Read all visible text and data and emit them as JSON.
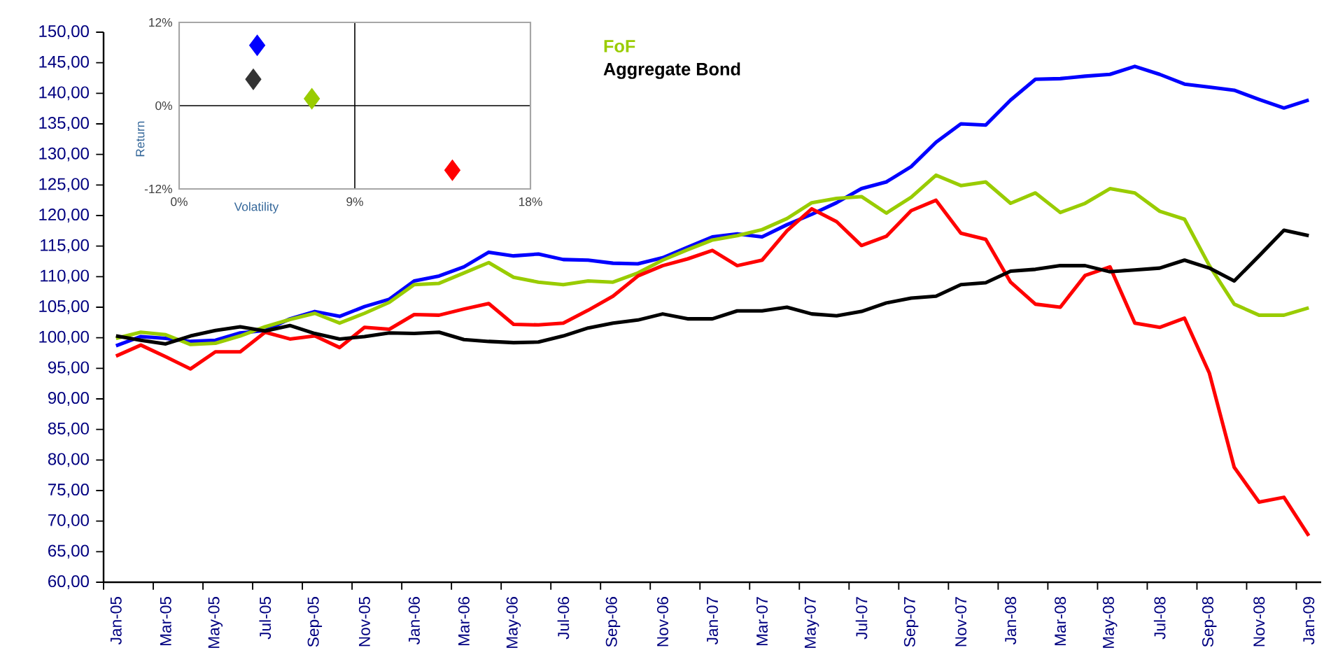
{
  "chart_data": [
    {
      "type": "line",
      "categories": [
        "Jan-05",
        null,
        "Mar-05",
        null,
        "May-05",
        null,
        "Jul-05",
        null,
        "Sep-05",
        null,
        "Nov-05",
        null,
        "Jan-06",
        null,
        "Mar-06",
        null,
        "May-06",
        null,
        "Jul-06",
        null,
        "Sep-06",
        null,
        "Nov-06",
        null,
        "Jan-07",
        null,
        "Mar-07",
        null,
        "May-07",
        null,
        "Jul-07",
        null,
        "Sep-07",
        null,
        "Nov-07",
        null,
        "Jan-08",
        null,
        "Mar-08",
        null,
        "May-08",
        null,
        "Jul-08",
        null,
        "Sep-08",
        null,
        "Nov-08",
        null,
        "Jan-09"
      ],
      "series": [
        {
          "color": "#0000ff",
          "values": [
            98.7,
            100.2,
            99.9,
            99.4,
            99.6,
            100.8,
            101.2,
            103.1,
            104.3,
            103.5,
            105.1,
            106.3,
            109.3,
            110.1,
            111.6,
            114.0,
            113.4,
            113.7,
            112.8,
            112.7,
            112.2,
            112.1,
            113.1,
            114.8,
            116.5,
            117.0,
            116.5,
            118.5,
            120.2,
            122.1,
            124.4,
            125.5,
            128.0,
            132.0,
            135.0,
            134.8,
            138.9,
            142.3,
            142.4,
            142.8,
            143.1,
            144.4,
            143.1,
            141.5,
            141.0,
            140.5,
            139.0,
            137.6,
            138.9
          ]
        },
        {
          "name": "FoF",
          "color": "#99cc00",
          "values": [
            99.9,
            100.9,
            100.5,
            98.9,
            99.1,
            100.3,
            101.8,
            103.0,
            104.0,
            102.4,
            104.0,
            105.8,
            108.7,
            108.9,
            110.6,
            112.3,
            109.9,
            109.1,
            108.7,
            109.3,
            109.1,
            110.6,
            112.7,
            114.4,
            116.0,
            116.7,
            117.7,
            119.5,
            122.1,
            122.8,
            123.1,
            120.4,
            123.0,
            126.6,
            124.9,
            125.5,
            122.0,
            123.7,
            120.5,
            122.0,
            124.4,
            123.7,
            120.7,
            119.4,
            111.8,
            105.5,
            103.7,
            103.7,
            104.9
          ]
        },
        {
          "color": "#ff0000",
          "values": [
            97.0,
            98.8,
            96.9,
            94.9,
            97.7,
            97.7,
            100.9,
            99.8,
            100.3,
            98.4,
            101.7,
            101.4,
            103.8,
            103.7,
            104.7,
            105.6,
            102.2,
            102.1,
            102.4,
            104.5,
            106.8,
            110.1,
            111.8,
            112.9,
            114.3,
            111.8,
            112.7,
            117.5,
            121.1,
            119.0,
            115.1,
            116.6,
            120.8,
            122.5,
            117.1,
            116.1,
            109.1,
            105.5,
            105.0,
            110.2,
            111.6,
            102.4,
            101.7,
            103.2,
            94.2,
            78.8,
            73.1,
            73.9,
            67.6
          ]
        },
        {
          "name": "Aggregate Bond",
          "color": "#000000",
          "values": [
            100.3,
            99.6,
            99.0,
            100.3,
            101.2,
            101.8,
            101.1,
            102.0,
            100.7,
            99.8,
            100.2,
            100.8,
            100.7,
            100.9,
            99.7,
            99.4,
            99.2,
            99.3,
            100.3,
            101.6,
            102.4,
            102.9,
            103.9,
            103.1,
            103.1,
            104.4,
            104.4,
            105.0,
            103.9,
            103.6,
            104.3,
            105.7,
            106.5,
            106.8,
            108.7,
            109.0,
            110.9,
            111.2,
            111.8,
            111.8,
            110.8,
            111.1,
            111.4,
            112.7,
            111.4,
            109.3,
            113.4,
            117.6,
            116.7
          ]
        }
      ],
      "ylim": [
        60,
        150
      ],
      "yticks": [
        {
          "value": 60,
          "label": "60,00"
        },
        {
          "value": 65,
          "label": "65,00"
        },
        {
          "value": 70,
          "label": "70,00"
        },
        {
          "value": 75,
          "label": "75,00"
        },
        {
          "value": 80,
          "label": "80,00"
        },
        {
          "value": 85,
          "label": "85,00"
        },
        {
          "value": 90,
          "label": "90,00"
        },
        {
          "value": 95,
          "label": "95,00"
        },
        {
          "value": 100,
          "label": "100,00"
        },
        {
          "value": 105,
          "label": "105,00"
        },
        {
          "value": 110,
          "label": "110,00"
        },
        {
          "value": 115,
          "label": "115,00"
        },
        {
          "value": 120,
          "label": "120,00"
        },
        {
          "value": 125,
          "label": "125,00"
        },
        {
          "value": 130,
          "label": "130,00"
        },
        {
          "value": 135,
          "label": "135,00"
        },
        {
          "value": 140,
          "label": "140,00"
        },
        {
          "value": 145,
          "label": "145,00"
        },
        {
          "value": 150,
          "label": "150,00"
        }
      ],
      "legend": "top",
      "line_style": "solid"
    },
    {
      "type": "scatter",
      "xlabel": "Volatility",
      "ylabel": "Return",
      "xlim": [
        0,
        18
      ],
      "xticks": [
        {
          "value": 0,
          "label": "0%"
        },
        {
          "value": 9,
          "label": "9%"
        },
        {
          "value": 18,
          "label": "18%"
        }
      ],
      "ylim": [
        -12,
        12
      ],
      "yticks": [
        {
          "value": -12,
          "label": "-12%"
        },
        {
          "value": 0,
          "label": "0%"
        },
        {
          "value": 12,
          "label": "12%"
        }
      ],
      "grid": true,
      "marker": "diamond",
      "series": [
        {
          "color": "#0000ff",
          "x": [
            4.0
          ],
          "values": [
            8.7
          ]
        },
        {
          "color": "#333333",
          "x": [
            3.8
          ],
          "values": [
            3.8
          ]
        },
        {
          "color": "#99cc00",
          "x": [
            6.8
          ],
          "values": [
            1.0
          ]
        },
        {
          "color": "#ff0000",
          "x": [
            14.0
          ],
          "values": [
            -9.3
          ]
        }
      ]
    }
  ]
}
